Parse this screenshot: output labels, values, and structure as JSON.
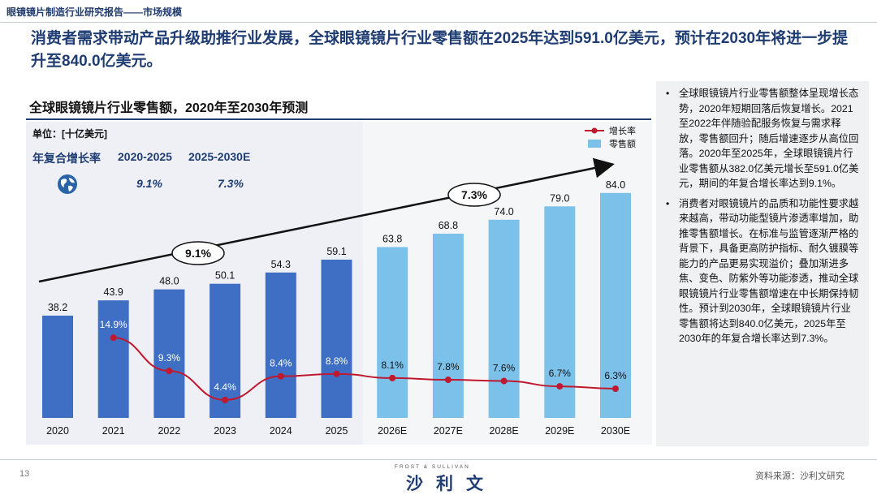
{
  "header": {
    "section_title": "眼镜镜片制造行业研究报告——市场规模",
    "headline": "消费者需求带动产品升级助推行业发展，全球眼镜镜片行业零售额在2025年达到591.0亿美元，预计在2030年将进一步提升至840.0亿美元。"
  },
  "chart_title": "全球眼镜镜片行业零售额，2020年至2030年预测",
  "unit_label": "单位：[十亿美元]",
  "cagr": {
    "label": "年复合增长率",
    "period1": "2020-2025",
    "period2": "2025-2030E",
    "value1": "9.1%",
    "value2": "7.3%",
    "bubble1": "9.1%",
    "bubble2": "7.3%"
  },
  "chart_data": {
    "type": "bar",
    "title": "全球眼镜镜片行业零售额，2020年至2030年预测",
    "categories": [
      "2020",
      "2021",
      "2022",
      "2023",
      "2024",
      "2025",
      "2026E",
      "2027E",
      "2028E",
      "2029E",
      "2030E"
    ],
    "series": [
      {
        "name": "零售额",
        "values": [
          38.2,
          43.9,
          48.0,
          50.1,
          54.3,
          59.1,
          63.8,
          68.8,
          74.0,
          79.0,
          84.0
        ],
        "labels": [
          "38.2",
          "43.9",
          "48.0",
          "50.1",
          "54.3",
          "59.1",
          "63.8",
          "68.8",
          "74.0",
          "79.0",
          "84.0"
        ]
      },
      {
        "name": "增长率",
        "values": [
          null,
          14.9,
          9.3,
          4.4,
          8.4,
          8.8,
          8.1,
          7.8,
          7.6,
          6.7,
          6.3
        ],
        "labels": [
          "",
          "14.9%",
          "9.3%",
          "4.4%",
          "8.4%",
          "8.8%",
          "8.1%",
          "7.8%",
          "7.6%",
          "6.7%",
          "6.3%"
        ]
      }
    ],
    "legend": [
      "增长率",
      "零售额"
    ],
    "colors": {
      "historic_bar": "#3f6fc4",
      "forecast_bar": "#7cc1ea",
      "growth_line": "#c0182f",
      "arrow": "#111111"
    },
    "ylim": [
      0,
      100
    ]
  },
  "notes": [
    "全球眼镜镜片行业零售额整体呈现增长态势，2020年短期回落后恢复增长。2021至2022年伴随验配服务恢复与需求释放，零售额回升；随后增速逐步从高位回落。2020年至2025年，全球眼镜镜片行业零售额从382.0亿美元增长至591.0亿美元，期间的年复合增长率达到9.1%。",
    "消费者对眼镜镜片的品质和功能性要求越来越高，带动功能型镜片渗透率增加，助推零售额增长。在标准与监管逐渐严格的背景下，具备更高防护指标、耐久镀膜等能力的产品更易实现溢价；叠加渐进多焦、变色、防紫外等功能渗透，推动全球眼镜镜片行业零售额增速在中长期保持韧性。预计到2030年，全球眼镜镜片行业零售额将达到840.0亿美元，2025年至2030年的年复合增长率达到7.3%。"
  ],
  "footer": {
    "page_number": "13",
    "brand_small": "FROST & SULLIVAN",
    "brand_big": "沙利文",
    "source": "资料来源：沙利文研究"
  }
}
